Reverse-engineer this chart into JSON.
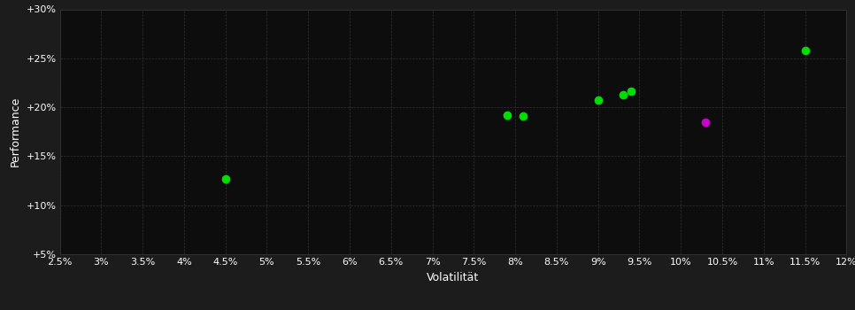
{
  "background_color": "#1c1c1c",
  "plot_bg_color": "#0d0d0d",
  "grid_color": "#3a3a3a",
  "xlabel": "Volatilität",
  "ylabel": "Performance",
  "xlim": [
    0.025,
    0.12
  ],
  "ylim": [
    0.05,
    0.3
  ],
  "xticks": [
    0.025,
    0.03,
    0.035,
    0.04,
    0.045,
    0.05,
    0.055,
    0.06,
    0.065,
    0.07,
    0.075,
    0.08,
    0.085,
    0.09,
    0.095,
    0.1,
    0.105,
    0.11,
    0.115,
    0.12
  ],
  "yticks": [
    0.05,
    0.1,
    0.15,
    0.2,
    0.25,
    0.3
  ],
  "green_points": [
    [
      0.045,
      0.127
    ],
    [
      0.079,
      0.192
    ],
    [
      0.081,
      0.191
    ],
    [
      0.09,
      0.207
    ],
    [
      0.093,
      0.213
    ],
    [
      0.094,
      0.216
    ],
    [
      0.115,
      0.258
    ]
  ],
  "magenta_points": [
    [
      0.103,
      0.185
    ]
  ],
  "green_color": "#00dd00",
  "magenta_color": "#cc00cc",
  "text_color": "#ffffff",
  "font_size": 8,
  "label_font_size": 9,
  "marker_size": 6
}
